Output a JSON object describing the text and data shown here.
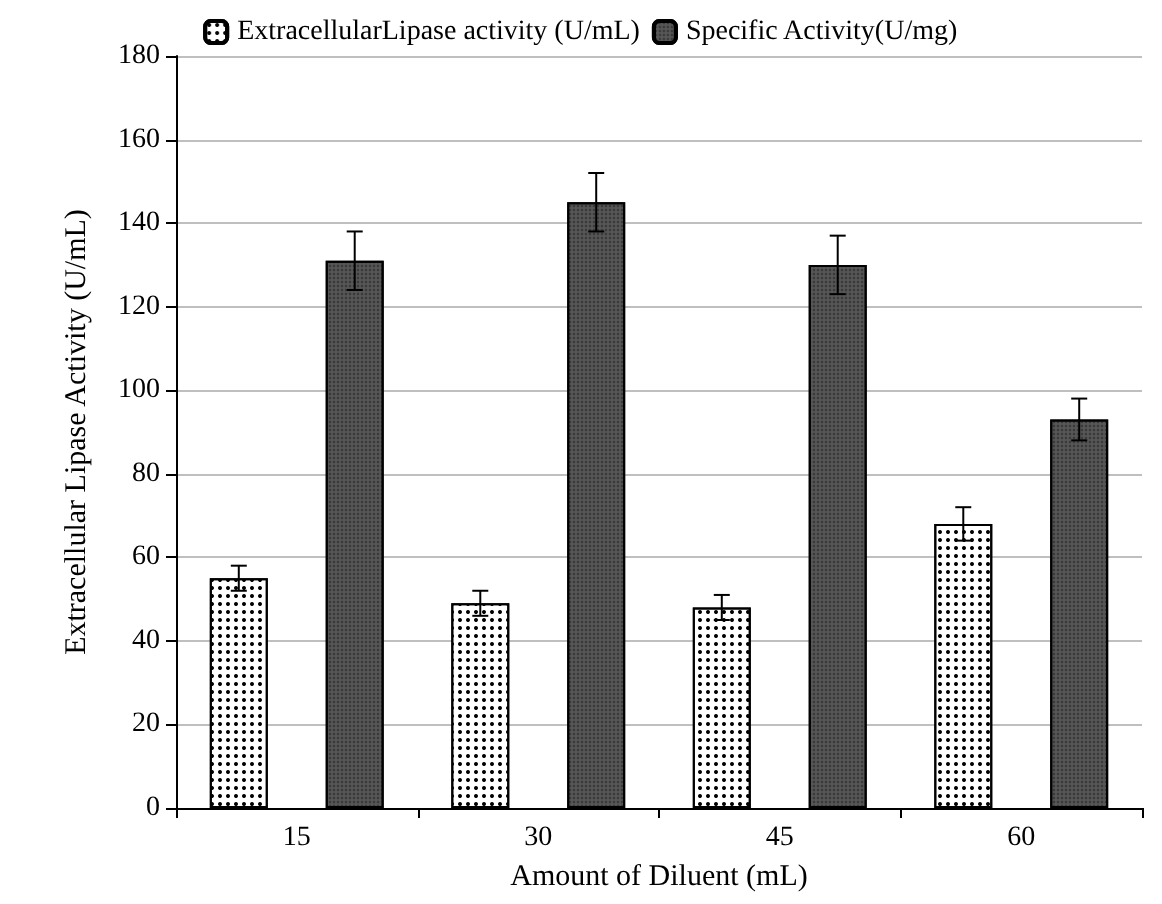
{
  "chart_data": {
    "type": "bar",
    "xlabel": "Amount of Diluent (mL)",
    "ylabel": "Extracellular Lipase Activity (U/mL)",
    "categories": [
      "15",
      "30",
      "45",
      "60"
    ],
    "series": [
      {
        "name": "ExtracellularLipase activity (U/mL)",
        "color": "#ffffff",
        "values": [
          55,
          49,
          48,
          68
        ],
        "errors": [
          3,
          3,
          3,
          4
        ]
      },
      {
        "name": "Specific Activity(U/mg)",
        "color": "#595959",
        "values": [
          131,
          145,
          130,
          93
        ],
        "errors": [
          7,
          7,
          7,
          5
        ]
      }
    ],
    "ylim": [
      0,
      180
    ],
    "yticks": [
      0,
      20,
      40,
      60,
      80,
      100,
      120,
      140,
      160,
      180
    ],
    "grid": "y",
    "legend": "top"
  }
}
